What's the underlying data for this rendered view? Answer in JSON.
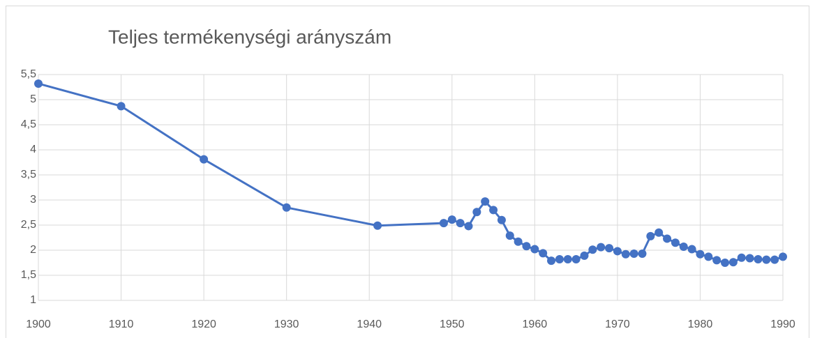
{
  "chart_data": {
    "type": "line",
    "title": "Teljes termékenységi arányszám",
    "x": [
      1900,
      1910,
      1920,
      1930,
      1941,
      1949,
      1950,
      1951,
      1952,
      1953,
      1954,
      1955,
      1956,
      1957,
      1958,
      1959,
      1960,
      1961,
      1962,
      1963,
      1964,
      1965,
      1966,
      1967,
      1968,
      1969,
      1970,
      1971,
      1972,
      1973,
      1974,
      1975,
      1976,
      1977,
      1978,
      1979,
      1980,
      1981,
      1982,
      1983,
      1984,
      1985,
      1986,
      1987,
      1988,
      1989,
      1990
    ],
    "series": [
      {
        "name": "Teljes termékenységi arányszám",
        "color": "#4472c4",
        "values": [
          5.32,
          4.87,
          3.81,
          2.85,
          2.49,
          2.54,
          2.61,
          2.54,
          2.48,
          2.76,
          2.97,
          2.8,
          2.6,
          2.29,
          2.17,
          2.08,
          2.02,
          1.94,
          1.79,
          1.82,
          1.82,
          1.82,
          1.89,
          2.01,
          2.06,
          2.04,
          1.98,
          1.92,
          1.93,
          1.93,
          2.28,
          2.35,
          2.23,
          2.15,
          2.07,
          2.02,
          1.92,
          1.87,
          1.8,
          1.75,
          1.76,
          1.85,
          1.84,
          1.82,
          1.81,
          1.81,
          1.87
        ]
      }
    ],
    "xlim": [
      1900,
      1990
    ],
    "xticks": [
      1900,
      1910,
      1920,
      1930,
      1940,
      1950,
      1960,
      1970,
      1980,
      1990
    ],
    "ylim": [
      1,
      5.5
    ],
    "yticks": [
      1,
      {
        "value": 1.5,
        "label": "1,5"
      },
      2,
      {
        "value": 2.5,
        "label": "2,5"
      },
      3,
      {
        "value": 3.5,
        "label": "3,5"
      },
      4,
      {
        "value": 4.5,
        "label": "4,5"
      },
      5,
      {
        "value": 5.5,
        "label": "5,5"
      }
    ],
    "grid": true
  }
}
